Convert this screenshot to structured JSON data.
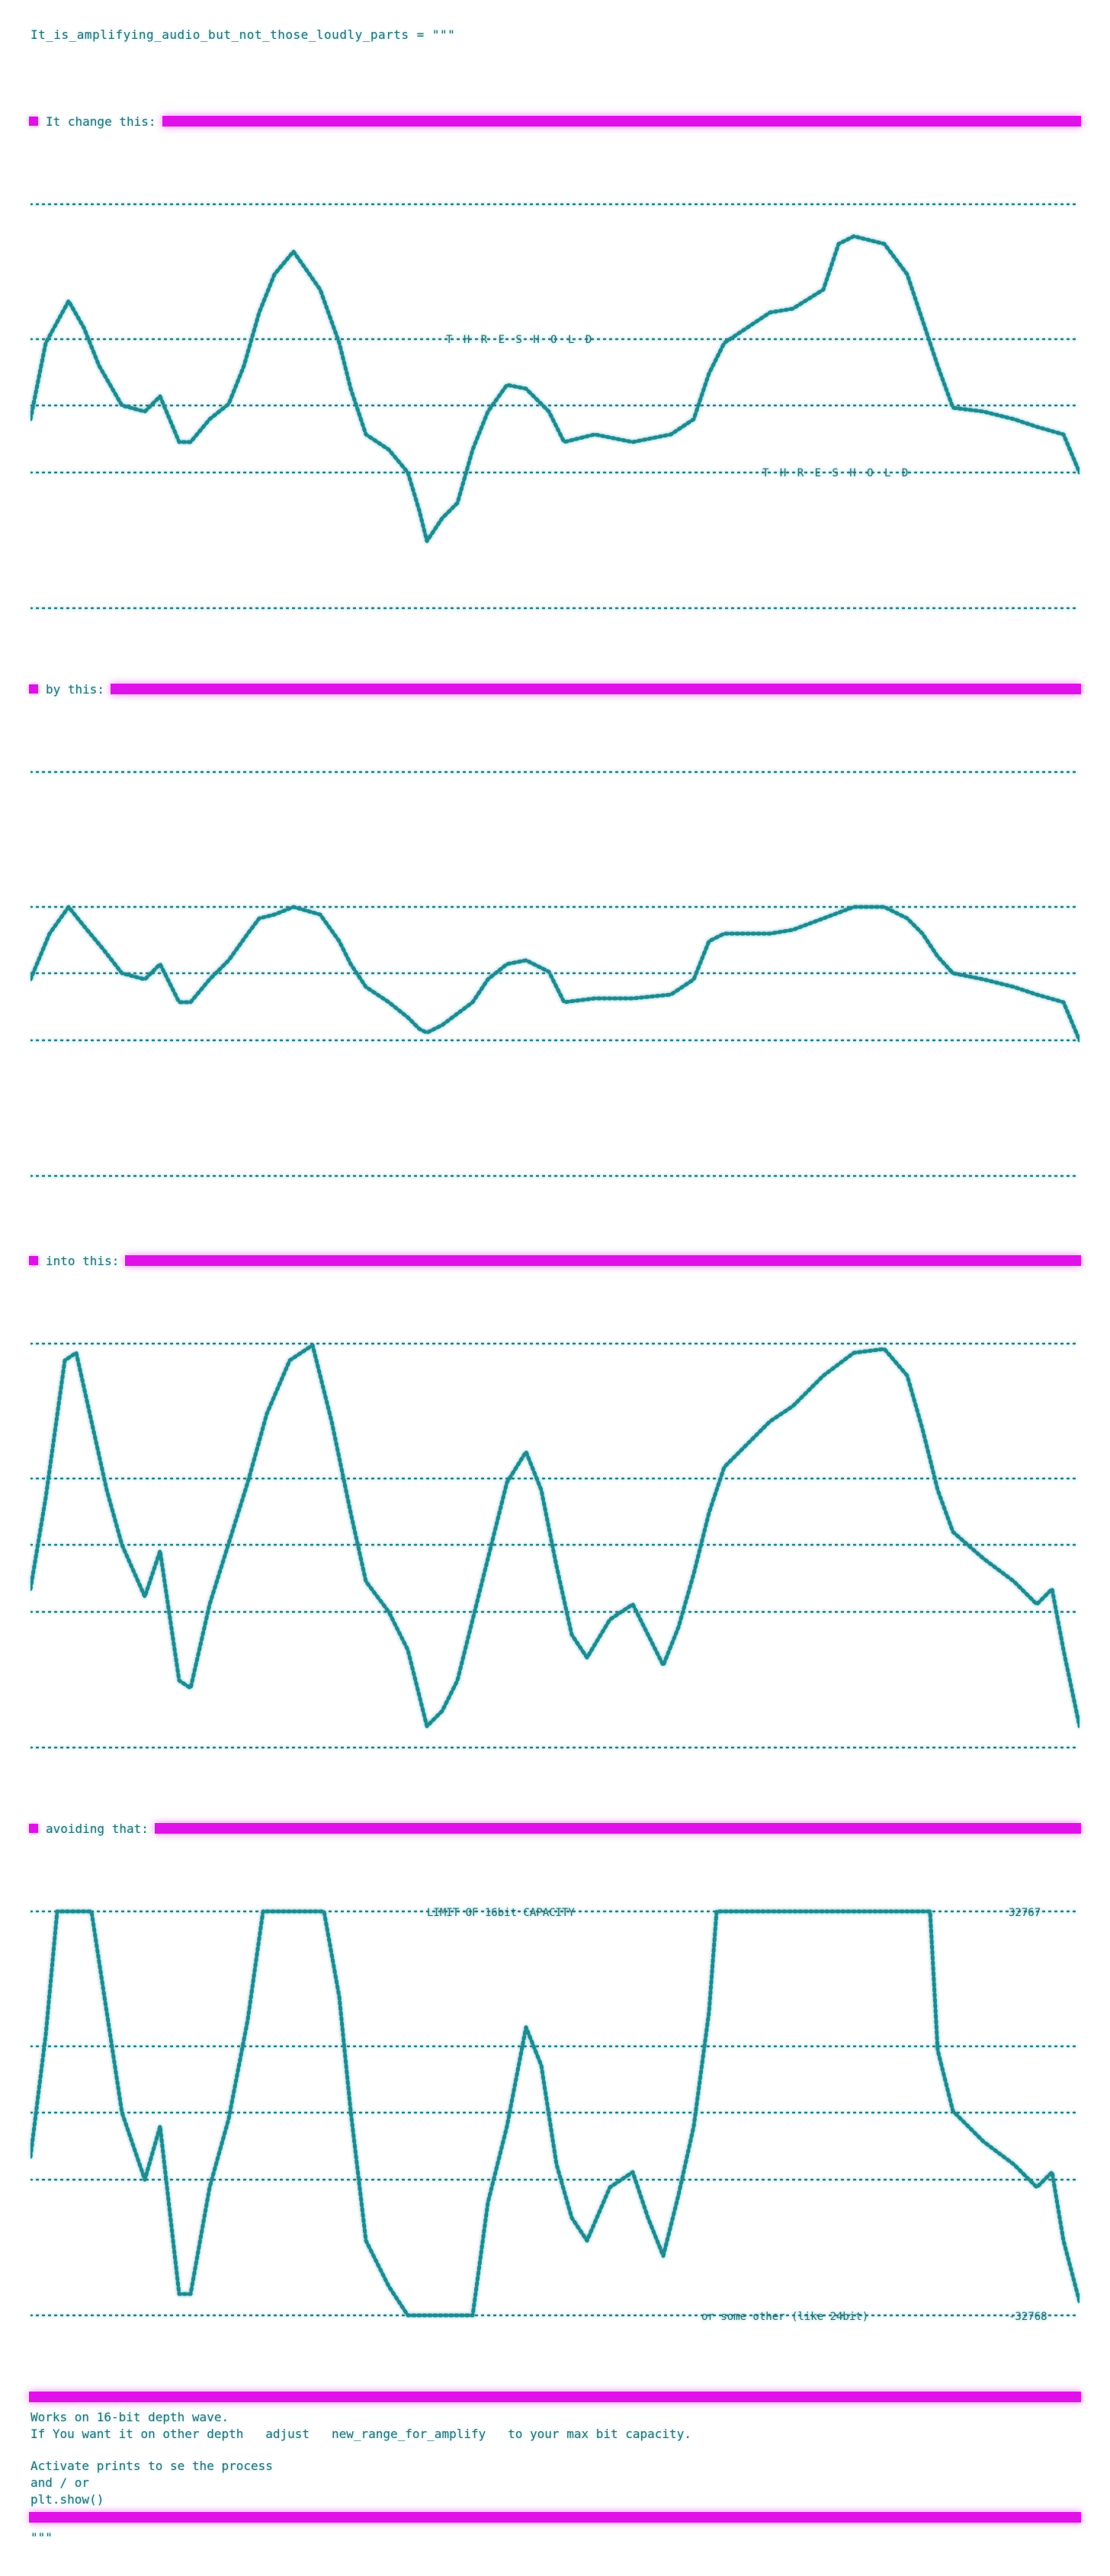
{
  "title": "It_is_amplifying_audio_but_not_those_loudly_parts = \"\"\"",
  "sections": [
    {
      "label": "It change this:"
    },
    {
      "label": "by this:"
    },
    {
      "label": "into this:"
    },
    {
      "label": "avoiding that:"
    }
  ],
  "threshold_label": "T H R E S H O L D",
  "limit_label": "LIMIT OF 16bit CAPACITY",
  "positive_max": "32767",
  "negative_min": "-32768",
  "negative_note": "or some other (like 24bit)",
  "footer": {
    "line1": "Works on 16-bit depth wave.",
    "line2": "If You want it on other depth   adjust   new_range_for_amplify   to your max bit capacity.",
    "line3": "Activate prints to se the process",
    "line4": "and / or",
    "line5": "plt.show()",
    "line6": "\"\"\""
  }
}
